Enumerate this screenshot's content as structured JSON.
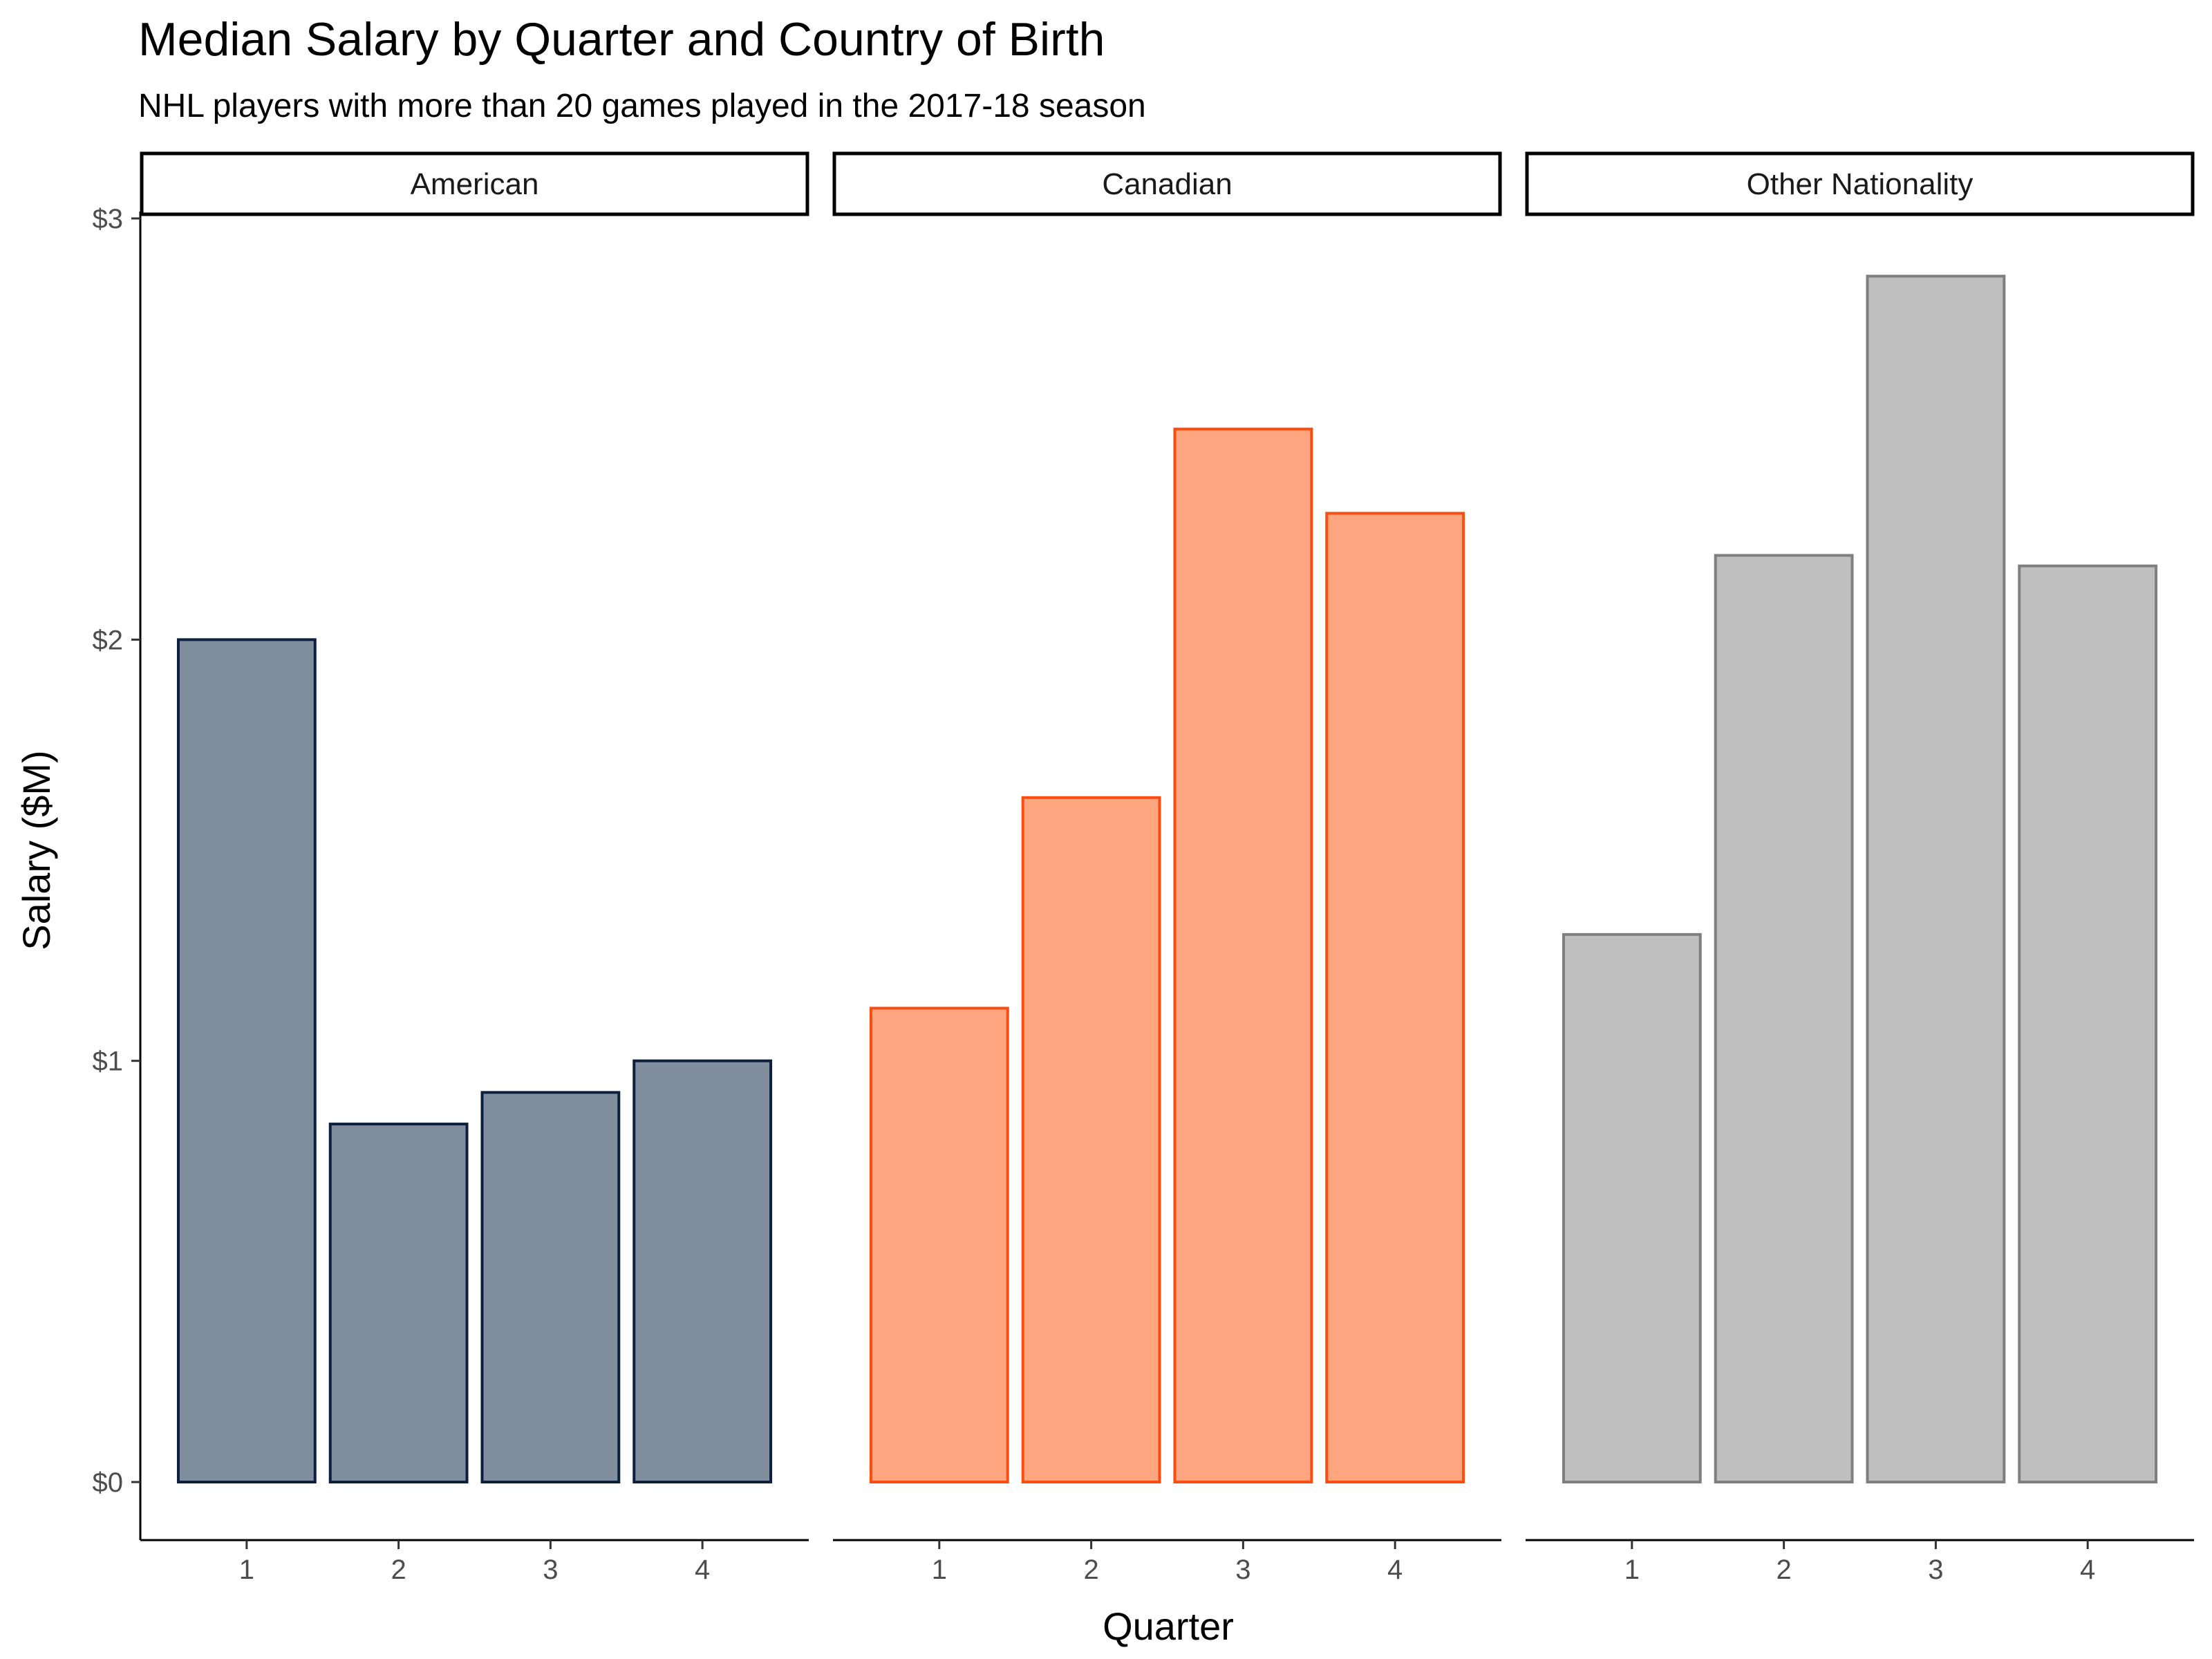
{
  "chart_data": {
    "type": "bar",
    "title": "Median Salary by Quarter and Country of Birth",
    "subtitle": "NHL players with more than 20 games played in the 2017-18 season",
    "xlabel": "Quarter",
    "ylabel": "Salary ($M)",
    "categories": [
      "1",
      "2",
      "3",
      "4"
    ],
    "ylim": [
      0,
      3
    ],
    "yticks": [
      0,
      1,
      2,
      3
    ],
    "ytick_labels": [
      "$0",
      "$1",
      "$2",
      "$3"
    ],
    "grid": false,
    "legend": "none",
    "facets": [
      {
        "name": "American",
        "values": [
          2.0,
          0.85,
          0.925,
          1.0
        ],
        "fill": "#808e9e",
        "stroke": "#0c1f3d"
      },
      {
        "name": "Canadian",
        "values": [
          1.125,
          1.625,
          2.5,
          2.3
        ],
        "fill": "#ffa680",
        "stroke": "#fa4d0f"
      },
      {
        "name": "Other Nationality",
        "values": [
          1.3,
          2.2,
          2.863,
          2.175
        ],
        "fill": "#bfbfbf",
        "stroke": "#7f7f7f"
      }
    ]
  }
}
